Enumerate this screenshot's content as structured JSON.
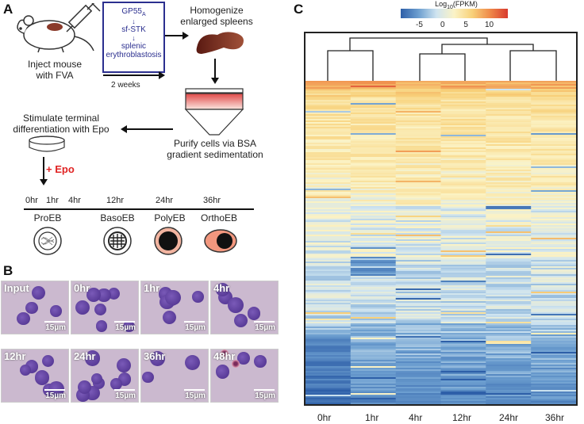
{
  "panels": {
    "a": "A",
    "b": "B",
    "c": "C"
  },
  "panelA": {
    "inject_line1": "Inject mouse",
    "inject_line2": "with FVA",
    "box_gp55": "GP55",
    "box_gp55_sub": "A",
    "box_sfstk": "sf-STK",
    "box_splenic": "splenic",
    "box_erythro": "erythroblastosis",
    "two_weeks": "2 weeks",
    "homog_line1": "Homogenize",
    "homog_line2": "enlarged spleens",
    "stim_line1": "Stimulate terminal",
    "stim_line2": "differentiation with Epo",
    "purify_line1": "Purify cells via BSA",
    "purify_line2": "gradient sedimentation",
    "epo": "+ Epo",
    "times": [
      "0hr",
      "1hr",
      "4hr",
      "12hr",
      "24hr",
      "36hr"
    ],
    "stages": [
      "ProEB",
      "BasoEB",
      "PolyEB",
      "OrthoEB"
    ]
  },
  "panelB": {
    "images": [
      {
        "label": "Input",
        "scale": "15µm"
      },
      {
        "label": "0hr",
        "scale": "15µm"
      },
      {
        "label": "1hr",
        "scale": "15µm"
      },
      {
        "label": "4hr",
        "scale": "15µm"
      },
      {
        "label": "12hr",
        "scale": "15µm"
      },
      {
        "label": "24hr",
        "scale": "15µm"
      },
      {
        "label": "36hr",
        "scale": "15µm"
      },
      {
        "label": "48hr",
        "scale": "15µm"
      }
    ]
  },
  "chart_data": {
    "type": "heatmap",
    "title": "Log10(FPKM)",
    "colorbar_title_prefix": "Log",
    "colorbar_title_sub": "10",
    "colorbar_title_suffix": "(FPKM)",
    "colorbar_ticks": [
      -5,
      0,
      5,
      10
    ],
    "colorbar_range": [
      -9,
      14
    ],
    "columns": [
      "0hr",
      "1hr",
      "4hr",
      "12hr",
      "24hr",
      "36hr"
    ],
    "dendrogram": "((0hr,1hr),((4hr,12hr),(24hr,36hr)))"
  },
  "colors": {
    "accent_red": "#e02424",
    "box_blue": "#2b2f8f",
    "pink": "#f2b4a0"
  }
}
